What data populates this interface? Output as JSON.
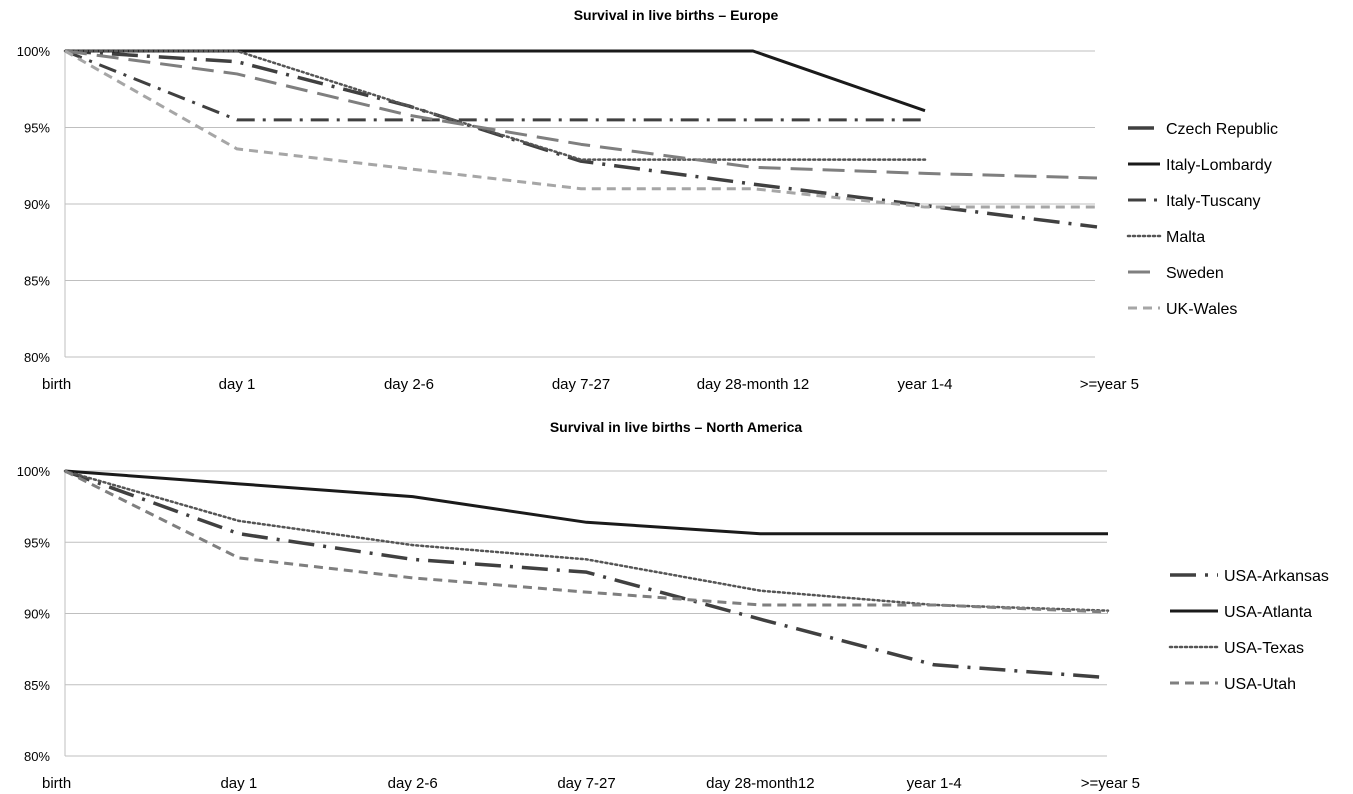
{
  "chart_data": [
    {
      "type": "line",
      "title": "Survival in live births – Europe",
      "xlabel": "",
      "ylabel": "",
      "categories": [
        "birth",
        "day 1",
        "day 2-6",
        "day 7-27",
        "day 28-month 12",
        "year 1-4",
        ">=year 5"
      ],
      "yticks": [
        "80%",
        "85%",
        "90%",
        "95%",
        "100%"
      ],
      "ylim": [
        80,
        100
      ],
      "grid": true,
      "legend_position": "right",
      "series": [
        {
          "name": "Czech Republic",
          "style": "longdash-dot",
          "color": "#404040",
          "values": [
            100,
            99.3,
            96.4,
            92.8,
            91.3,
            89.9,
            88.5
          ]
        },
        {
          "name": "Italy-Lombardy",
          "style": "solid",
          "color": "#1a1a1a",
          "values": [
            100,
            100,
            100,
            100,
            100,
            96.1,
            null
          ]
        },
        {
          "name": "Italy-Tuscany",
          "style": "dashdot",
          "color": "#404040",
          "values": [
            100,
            95.5,
            95.5,
            95.5,
            95.5,
            95.5,
            null
          ]
        },
        {
          "name": "Malta",
          "style": "dotted",
          "color": "#555555",
          "values": [
            100,
            100,
            96.4,
            92.9,
            92.9,
            92.9,
            null
          ]
        },
        {
          "name": "Sweden",
          "style": "longdash",
          "color": "#7f7f7f",
          "values": [
            100,
            98.5,
            95.8,
            93.9,
            92.4,
            92.0,
            91.7
          ]
        },
        {
          "name": "UK-Wales",
          "style": "dash",
          "color": "#a6a6a6",
          "values": [
            100,
            93.6,
            92.3,
            91.0,
            91.0,
            89.8,
            89.8
          ]
        }
      ]
    },
    {
      "type": "line",
      "title": "Survival in live births – North America",
      "xlabel": "",
      "ylabel": "",
      "categories": [
        "birth",
        "day 1",
        "day 2-6",
        "day 7-27",
        "day 28-month12",
        "year 1-4",
        ">=year 5"
      ],
      "yticks": [
        "80%",
        "85%",
        "90%",
        "95%",
        "100%"
      ],
      "ylim": [
        80,
        100
      ],
      "grid": true,
      "legend_position": "right",
      "series": [
        {
          "name": "USA-Arkansas",
          "style": "longdash-dot",
          "color": "#404040",
          "values": [
            100,
            95.6,
            93.8,
            92.9,
            89.6,
            86.4,
            85.5
          ]
        },
        {
          "name": "USA-Atlanta",
          "style": "solid",
          "color": "#1a1a1a",
          "values": [
            100,
            99.1,
            98.2,
            96.4,
            95.6,
            95.6,
            95.6
          ]
        },
        {
          "name": "USA-Texas",
          "style": "dotted",
          "color": "#555555",
          "values": [
            100,
            96.5,
            94.8,
            93.8,
            91.6,
            90.6,
            90.2
          ]
        },
        {
          "name": "USA-Utah",
          "style": "dash",
          "color": "#7f7f7f",
          "values": [
            100,
            93.9,
            92.5,
            91.5,
            90.6,
            90.6,
            90.1
          ]
        }
      ]
    }
  ]
}
